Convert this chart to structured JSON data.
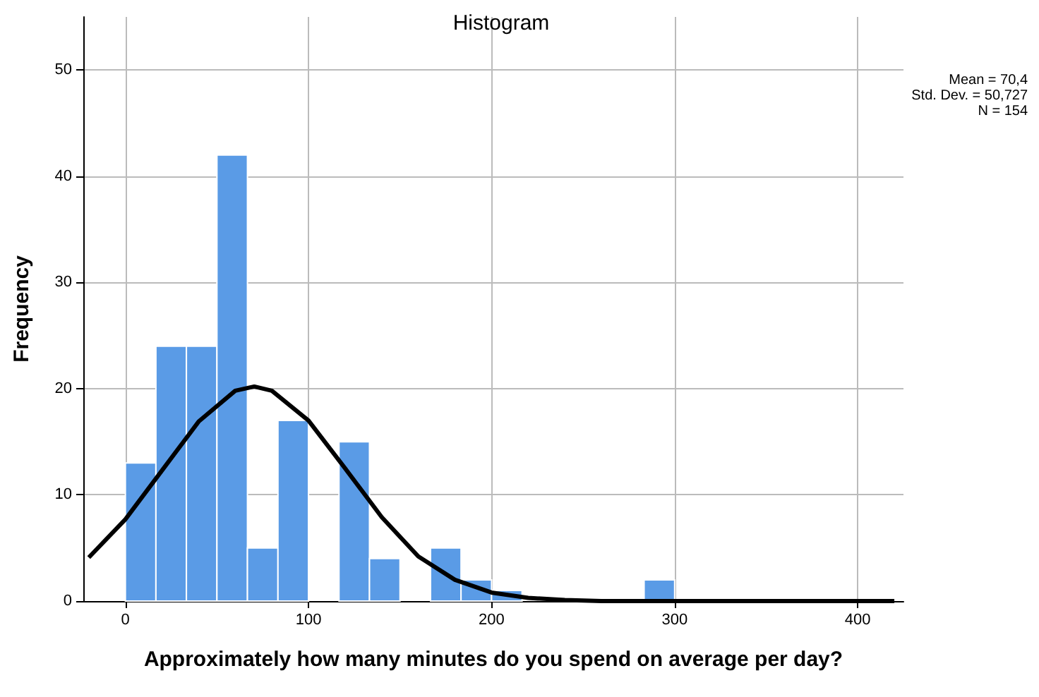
{
  "chart_data": {
    "type": "histogram",
    "title": "Histogram",
    "xlabel": "Approximately how many minutes do you spend on average per day?",
    "ylabel": "Frequency",
    "bins": [
      0,
      16.67,
      33.33,
      50,
      66.67,
      83.33,
      100,
      116.67,
      133.33,
      150,
      166.67,
      183.33,
      200,
      216.67,
      233.33,
      250,
      266.67,
      283.33,
      300
    ],
    "values": [
      13,
      24,
      24,
      42,
      5,
      17,
      0,
      15,
      4,
      0,
      5,
      2,
      1,
      0,
      0,
      0,
      0,
      2
    ],
    "color": "#5a9be6",
    "series": [
      {
        "type": "line",
        "color": "#000000",
        "x": [
          -20,
          0,
          20,
          40,
          60,
          70.4,
          80,
          100,
          120,
          140,
          160,
          180,
          200,
          220,
          240,
          260,
          280,
          300,
          340,
          380,
          420
        ],
        "values": [
          4.1,
          7.7,
          12.3,
          16.9,
          19.8,
          20.2,
          19.8,
          17.0,
          12.5,
          7.9,
          4.2,
          2.0,
          0.8,
          0.3,
          0.1,
          0,
          0,
          0,
          0,
          0,
          0
        ]
      }
    ],
    "annotations": [
      "Mean = 70,4",
      "Std. Dev. = 50,727",
      "N = 154"
    ],
    "xlim": [
      -23,
      425
    ],
    "xticks": [
      0,
      100,
      200,
      300,
      400
    ],
    "ylim": [
      0,
      55
    ],
    "yticks": [
      0,
      10,
      20,
      30,
      40,
      50
    ],
    "grid": true
  }
}
